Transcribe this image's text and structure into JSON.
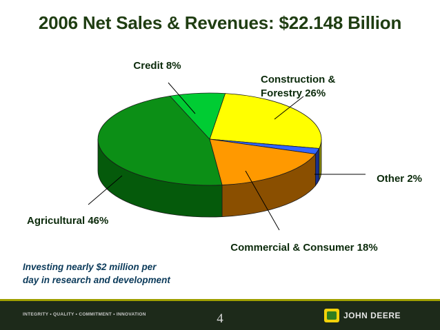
{
  "chart_data": {
    "type": "pie",
    "title": "2006 Net Sales & Revenues: $22.148 Billion",
    "series": [
      {
        "values": [
          26,
          2,
          18,
          46,
          8
        ]
      }
    ],
    "categories": [
      "Construction & Forestry",
      "Other",
      "Commercial & Consumer",
      "Agricultural",
      "Credit"
    ],
    "labels": [
      "Construction &|Forestry 26%",
      "Other 2%",
      "Commercial & Consumer 18%",
      "Agricultural 46%",
      "Credit 8%"
    ],
    "colors": [
      "#ffff00",
      "#3366ff",
      "#ff9900",
      "#0c8f16",
      "#00cc33"
    ],
    "side_colors": [
      "#8a8a00",
      "#1a2f8a",
      "#8a4f00",
      "#055a0b",
      "#067f1f"
    ]
  },
  "note": {
    "line1": "Investing nearly $2 million per",
    "line2": "day in research and development"
  },
  "footer": {
    "values": "INTEGRITY • QUALITY • COMMITMENT • INNOVATION",
    "page_number": "4",
    "brand": "JOHN DEERE"
  }
}
